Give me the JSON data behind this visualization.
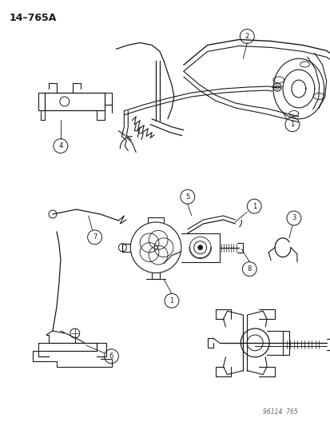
{
  "title": "14–765A",
  "watermark": "96114  765",
  "bg_color": "#ffffff",
  "fg_color": "#1a1a1a",
  "fig_width": 4.14,
  "fig_height": 5.33,
  "dpi": 100
}
